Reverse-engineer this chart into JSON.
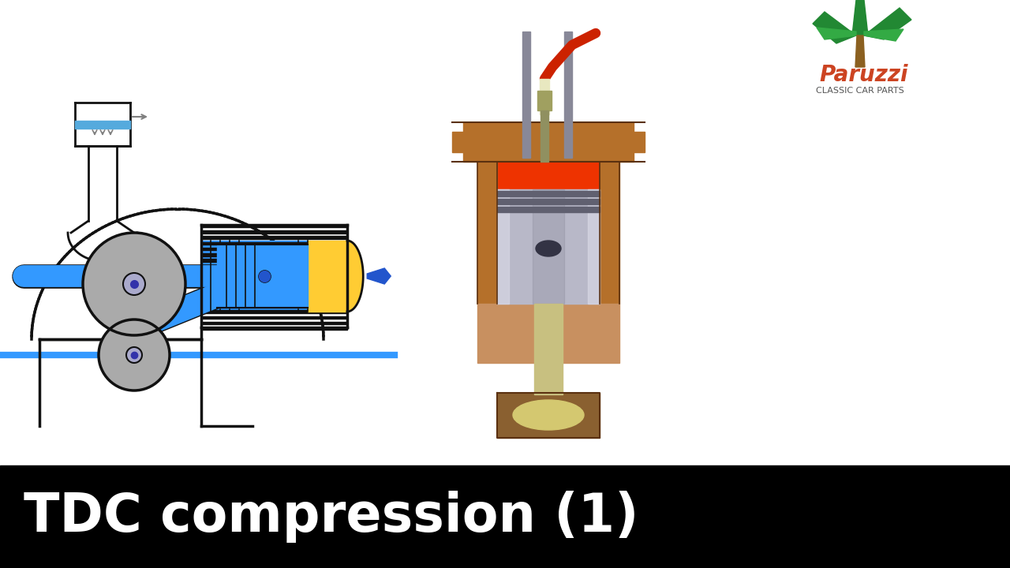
{
  "bg_color": "#ffffff",
  "title_text": "TDC compression (1)",
  "title_bg": "#000000",
  "title_color": "#ffffff",
  "title_fontsize": 48,
  "blue": "#3399ff",
  "black": "#111111",
  "gray": "#aaaaaa",
  "yellow": "#ffcc33",
  "dark_blue": "#2255cc",
  "cyl_body": "#b5702a",
  "cyl_inner_wall": "#c8a060",
  "piston_silver": "#b8b8c8",
  "piston_dark": "#888898",
  "combustion_red": "#ee3300",
  "rod_tan": "#c8c080",
  "bearing_tan": "#d4c870",
  "valve_gray": "#888898",
  "spark_wire_red": "#cc2200",
  "spark_body": "#c0c080",
  "logo_script": "#cc4422",
  "logo_sub": "#555555"
}
